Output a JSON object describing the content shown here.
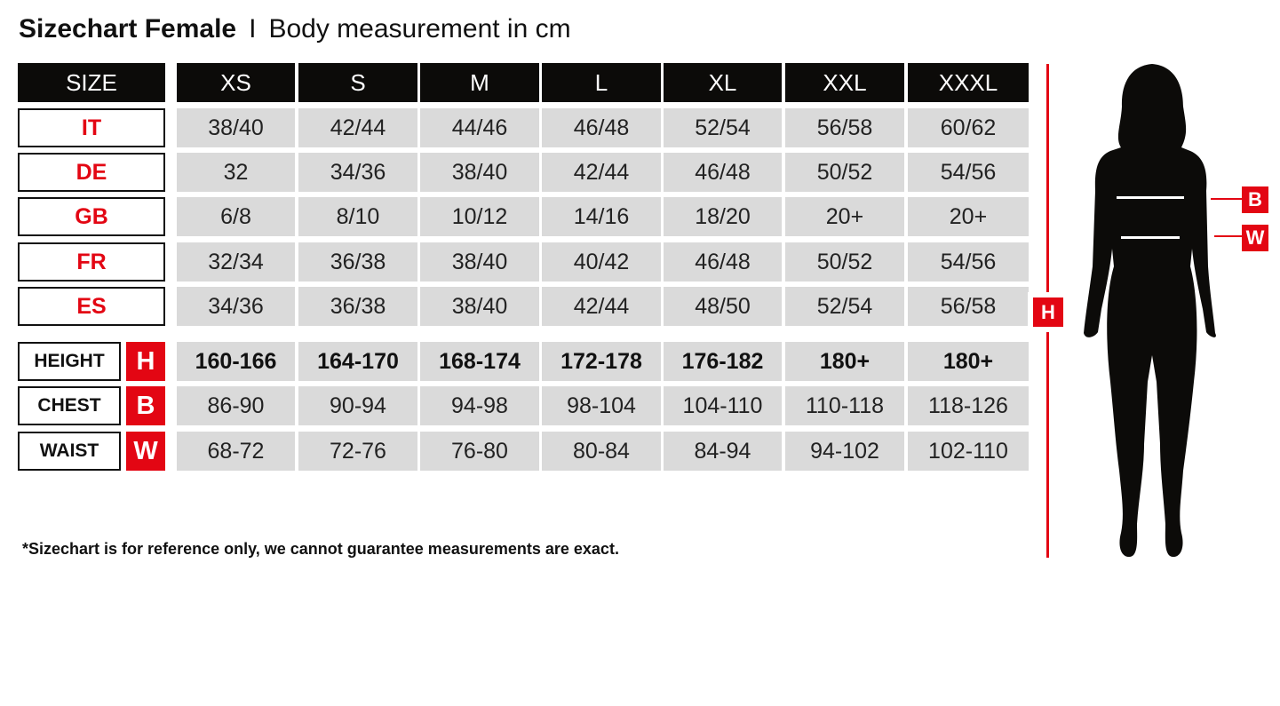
{
  "title": {
    "main": "Sizechart Female",
    "separator": "I",
    "sub": "Body measurement in cm"
  },
  "header": {
    "label": "SIZE",
    "sizes": [
      "XS",
      "S",
      "M",
      "L",
      "XL",
      "XXL",
      "XXXL"
    ]
  },
  "size_rows": [
    {
      "label": "IT",
      "values": [
        "38/40",
        "42/44",
        "44/46",
        "46/48",
        "52/54",
        "56/58",
        "60/62"
      ]
    },
    {
      "label": "DE",
      "values": [
        "32",
        "34/36",
        "38/40",
        "42/44",
        "46/48",
        "50/52",
        "54/56"
      ]
    },
    {
      "label": "GB",
      "values": [
        "6/8",
        "8/10",
        "10/12",
        "14/16",
        "18/20",
        "20+",
        "20+"
      ]
    },
    {
      "label": "FR",
      "values": [
        "32/34",
        "36/38",
        "38/40",
        "40/42",
        "46/48",
        "50/52",
        "54/56"
      ]
    },
    {
      "label": "ES",
      "values": [
        "34/36",
        "36/38",
        "38/40",
        "42/44",
        "48/50",
        "52/54",
        "56/58"
      ]
    }
  ],
  "measure_rows": [
    {
      "label": "HEIGHT",
      "code": "H",
      "bold": true,
      "values": [
        "160-166",
        "164-170",
        "168-174",
        "172-178",
        "176-182",
        "180+",
        "180+"
      ]
    },
    {
      "label": "CHEST",
      "code": "B",
      "bold": false,
      "values": [
        "86-90",
        "90-94",
        "94-98",
        "98-104",
        "104-110",
        "110-118",
        "118-126"
      ]
    },
    {
      "label": "WAIST",
      "code": "W",
      "bold": false,
      "values": [
        "68-72",
        "72-76",
        "76-80",
        "80-84",
        "84-94",
        "94-102",
        "102-110"
      ]
    }
  ],
  "figure": {
    "height_marker": "H",
    "chest_marker": "B",
    "waist_marker": "W"
  },
  "note": "*Sizechart is for reference only, we cannot guarantee measurements are exact.",
  "colors": {
    "accent": "#e30613",
    "header": "#0c0b09",
    "cell": "#dadada"
  }
}
